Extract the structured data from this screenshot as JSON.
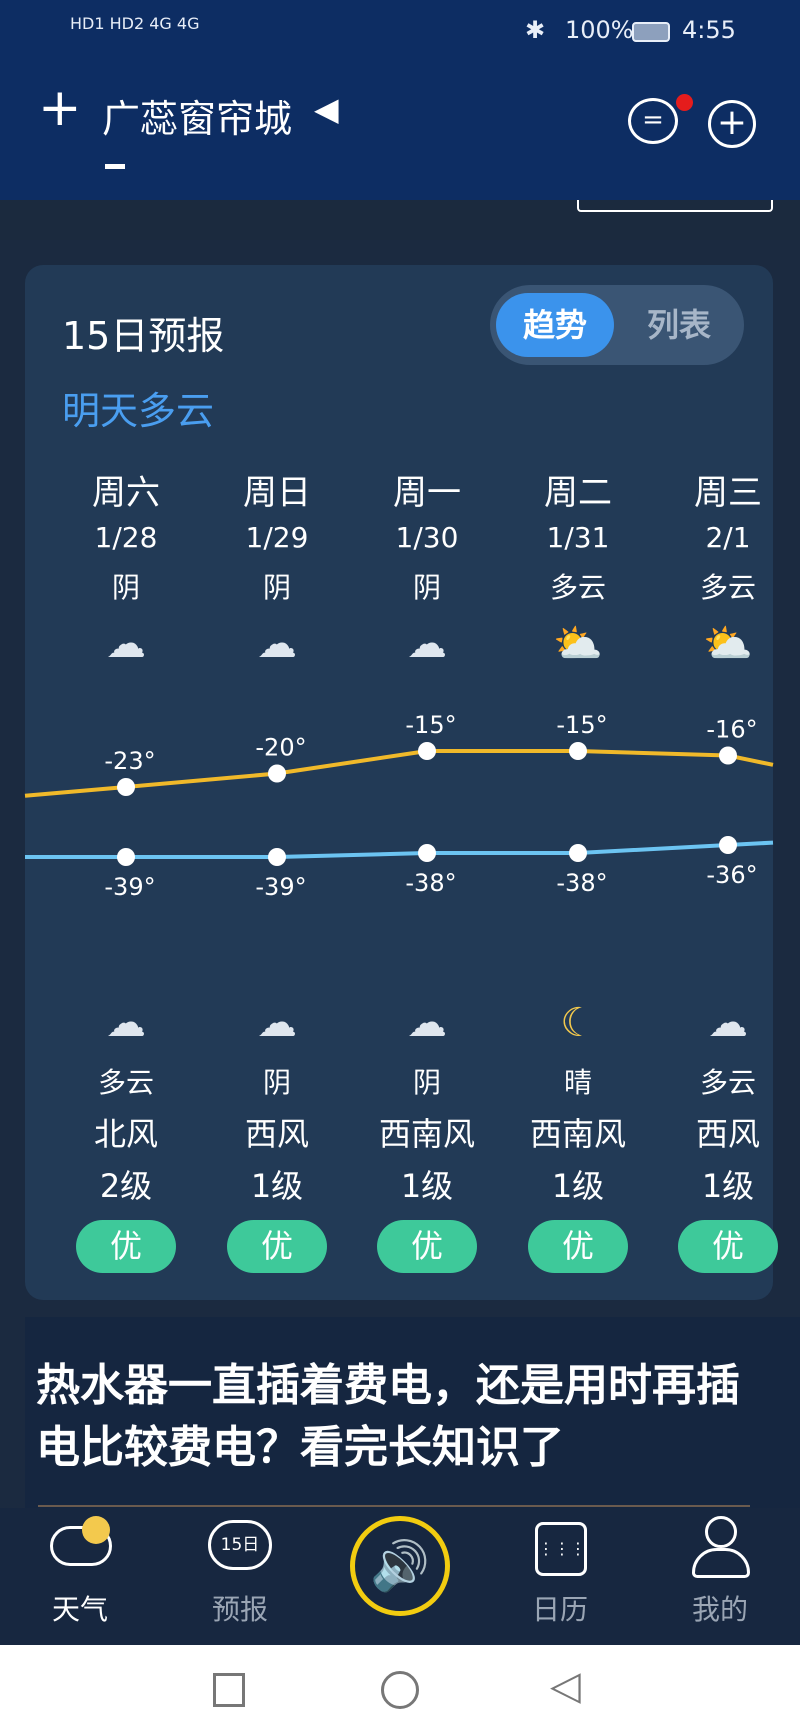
{
  "status_bar": {
    "left": "HD1 HD2 4G 4G",
    "battery": "100%",
    "time": "4:55"
  },
  "header": {
    "city": "广蕊窗帘城",
    "minus": "-"
  },
  "forecast": {
    "title": "15日预报",
    "subtitle": "明天多云",
    "toggle": [
      "趋势",
      "列表"
    ],
    "active_toggle": "趋势",
    "days": [
      {
        "name": "周六",
        "date": "1/28",
        "day_weather": "阴",
        "day_icon": "cloud-icon",
        "high": "-23°",
        "low": "-39°",
        "night_icon": "cloud-moon-icon",
        "night_weather": "多云",
        "wind": "北风",
        "level": "2级",
        "aqi": "优"
      },
      {
        "name": "周日",
        "date": "1/29",
        "day_weather": "阴",
        "day_icon": "cloud-icon",
        "high": "-20°",
        "low": "-39°",
        "night_icon": "cloud-icon",
        "night_weather": "阴",
        "wind": "西风",
        "level": "1级",
        "aqi": "优"
      },
      {
        "name": "周一",
        "date": "1/30",
        "day_weather": "阴",
        "day_icon": "cloud-icon",
        "high": "-15°",
        "low": "-38°",
        "night_icon": "cloud-icon",
        "night_weather": "阴",
        "wind": "西南风",
        "level": "1级",
        "aqi": "优"
      },
      {
        "name": "周二",
        "date": "1/31",
        "day_weather": "多云",
        "day_icon": "cloud-sun-icon",
        "high": "-15°",
        "low": "-38°",
        "night_icon": "moon-icon",
        "night_weather": "晴",
        "wind": "西南风",
        "level": "1级",
        "aqi": "优"
      },
      {
        "name": "周三",
        "date": "2/1",
        "day_weather": "多云",
        "day_icon": "cloud-sun-icon",
        "high": "-16°",
        "low": "-36°",
        "night_icon": "cloud-moon-icon",
        "night_weather": "多云",
        "wind": "西风",
        "level": "1级",
        "aqi": "优"
      }
    ],
    "colors": {
      "high": "#f0b92a",
      "low": "#6cc4f2",
      "aqi": "#3ec99a"
    }
  },
  "chart_data": {
    "type": "line",
    "categories": [
      "1/28",
      "1/29",
      "1/30",
      "1/31",
      "2/1"
    ],
    "series": [
      {
        "values": [
          -23,
          -20,
          -15,
          -15,
          -16
        ]
      },
      {
        "values": [
          -39,
          -39,
          -38,
          -38,
          -36
        ]
      }
    ]
  },
  "article": {
    "title": "热水器一直插着费电，还是用时再插电比较费电？看完长知识了"
  },
  "nav": {
    "items": [
      "天气",
      "预报",
      "日历",
      "我的"
    ],
    "icon_15": "15日",
    "active": "天气"
  }
}
